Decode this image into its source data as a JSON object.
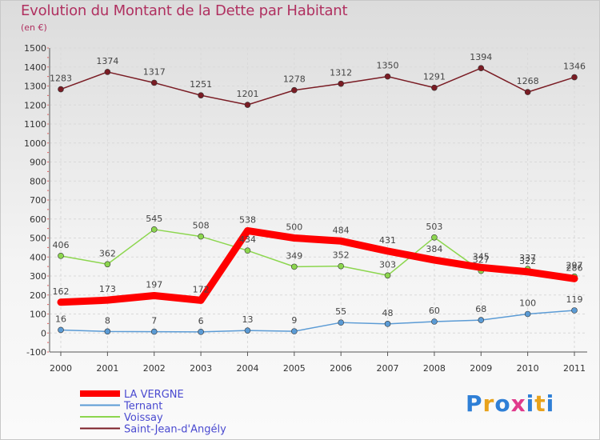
{
  "header": {
    "title": "Evolution du Montant de la Dette par Habitant",
    "subtitle": "(en €)"
  },
  "logo": {
    "text": "Proxiti",
    "colors": [
      "#2f7fd6",
      "#e8a21c",
      "#2f7fd6",
      "#e03a8c",
      "#2f7fd6",
      "#e8a21c",
      "#2f7fd6"
    ]
  },
  "chart_data": {
    "type": "line",
    "x": [
      "2000",
      "2001",
      "2002",
      "2003",
      "2004",
      "2005",
      "2006",
      "2007",
      "2008",
      "2009",
      "2010",
      "2011"
    ],
    "ylim": [
      -100,
      1500
    ],
    "yticks": [
      "-100",
      "0",
      "100",
      "200",
      "300",
      "400",
      "500",
      "600",
      "700",
      "800",
      "900",
      "1000",
      "1100",
      "1200",
      "1300",
      "1400",
      "1500"
    ],
    "grid": true,
    "legend_position": "bottom-left",
    "series": [
      {
        "name": "LA VERGNE",
        "color": "#ff0000",
        "values": [
          162,
          173,
          197,
          172,
          538,
          500,
          484,
          431,
          384,
          345,
          322,
          286
        ],
        "labels": [
          "162",
          "173",
          "197",
          "172",
          "538",
          "500",
          "484",
          "431",
          "384",
          "345",
          "322",
          "286"
        ]
      },
      {
        "name": "Ternant",
        "color": "#5b9bd5",
        "values": [
          16,
          8,
          7,
          6,
          13,
          9,
          55,
          48,
          60,
          68,
          100,
          119
        ],
        "labels": [
          "16",
          "8",
          "7",
          "6",
          "13",
          "9",
          "55",
          "48",
          "60",
          "68",
          "100",
          "119"
        ]
      },
      {
        "name": "Voissay",
        "color": "#8cd64e",
        "values": [
          406,
          362,
          545,
          508,
          434,
          349,
          352,
          303,
          503,
          327,
          337,
          297
        ],
        "labels": [
          "406",
          "362",
          "545",
          "508",
          "434",
          "349",
          "352",
          "303",
          "503",
          "327",
          "337",
          "297"
        ]
      },
      {
        "name": "Saint-Jean-d'Angély",
        "color": "#7a1c24",
        "values": [
          1283,
          1374,
          1317,
          1251,
          1201,
          1278,
          1312,
          1350,
          1291,
          1394,
          1268,
          1346
        ],
        "labels": [
          "1283",
          "1374",
          "1317",
          "1251",
          "1201",
          "1278",
          "1312",
          "1350",
          "1291",
          "1394",
          "1268",
          "1346"
        ]
      }
    ]
  }
}
